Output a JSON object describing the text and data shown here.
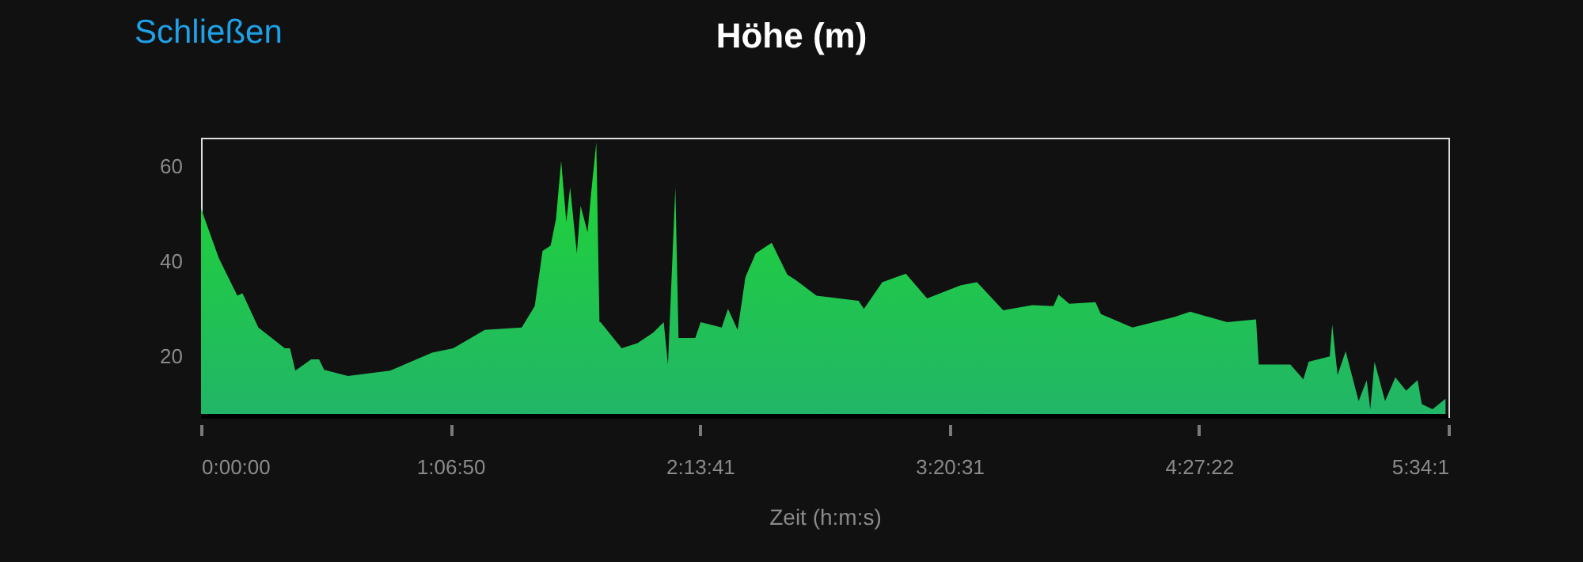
{
  "chart_data": {
    "type": "area",
    "title": "Höhe (m)",
    "xlabel": "Zeit (h:m:s)",
    "annotations": [
      "Schließen"
    ],
    "xlim": [
      0,
      5.57
    ],
    "ylim": [
      7.4,
      66
    ],
    "xticks": [
      {
        "value": 0,
        "label": "0:00:00"
      },
      {
        "value": 1.1139,
        "label": "1:06:50"
      },
      {
        "value": 2.2281,
        "label": "2:13:41"
      },
      {
        "value": 3.3419,
        "label": "3:20:31"
      },
      {
        "value": 4.4561,
        "label": "4:27:22"
      },
      {
        "value": 5.57,
        "label": "5:34:1"
      }
    ],
    "yticks": [
      20,
      40,
      60
    ],
    "grid": false,
    "series": [
      {
        "color": "#1fd631",
        "x": [
          0,
          0.08,
          0.162,
          0.185,
          0.256,
          0.374,
          0.397,
          0.421,
          0.492,
          0.527,
          0.55,
          0.656,
          0.844,
          1.032,
          1.126,
          1.267,
          1.432,
          1.49,
          1.525,
          1.561,
          1.585,
          1.608,
          1.631,
          1.648,
          1.678,
          1.695,
          1.726,
          1.742,
          1.765,
          1.779,
          1.784,
          1.878,
          1.949,
          2.019,
          2.066,
          2.085,
          2.118,
          2.132,
          2.207,
          2.231,
          2.325,
          2.353,
          2.396,
          2.431,
          2.477,
          2.548,
          2.618,
          2.654,
          2.748,
          2.936,
          2.96,
          3.042,
          3.147,
          3.242,
          3.394,
          3.465,
          3.582,
          3.712,
          3.806,
          3.829,
          3.877,
          3.994,
          4.018,
          4.159,
          4.346,
          4.417,
          4.582,
          4.711,
          4.723,
          4.864,
          4.922,
          4.946,
          5.04,
          5.051,
          5.075,
          5.111,
          5.169,
          5.205,
          5.221,
          5.24,
          5.287,
          5.333,
          5.381,
          5.432,
          5.451,
          5.499,
          5.557
        ],
        "values": [
          51.1,
          40.6,
          32.8,
          33.3,
          26.1,
          21.7,
          21.7,
          17,
          19.4,
          19.4,
          17.2,
          15.9,
          17,
          20.8,
          21.7,
          25.6,
          26.1,
          30.6,
          42.2,
          43.3,
          48.9,
          61.1,
          48.3,
          55.6,
          41.7,
          51.7,
          46.1,
          54.4,
          65,
          27.2,
          27.2,
          21.7,
          22.8,
          25,
          27.2,
          18.3,
          55.6,
          23.9,
          23.9,
          27.2,
          26.1,
          30,
          25.6,
          36.7,
          41.7,
          43.9,
          37.2,
          36.1,
          32.8,
          31.7,
          30,
          35.6,
          37.4,
          32.2,
          35,
          35.6,
          29.7,
          30.8,
          30.6,
          33,
          31.1,
          31.4,
          28.9,
          26.1,
          28.3,
          29.4,
          27.2,
          27.8,
          18.3,
          18.3,
          15.2,
          18.9,
          20,
          26.7,
          16.1,
          21.1,
          10.6,
          15,
          8.9,
          18.9,
          10.6,
          15.6,
          12.8,
          15,
          10,
          8.9,
          11.1
        ]
      }
    ]
  }
}
